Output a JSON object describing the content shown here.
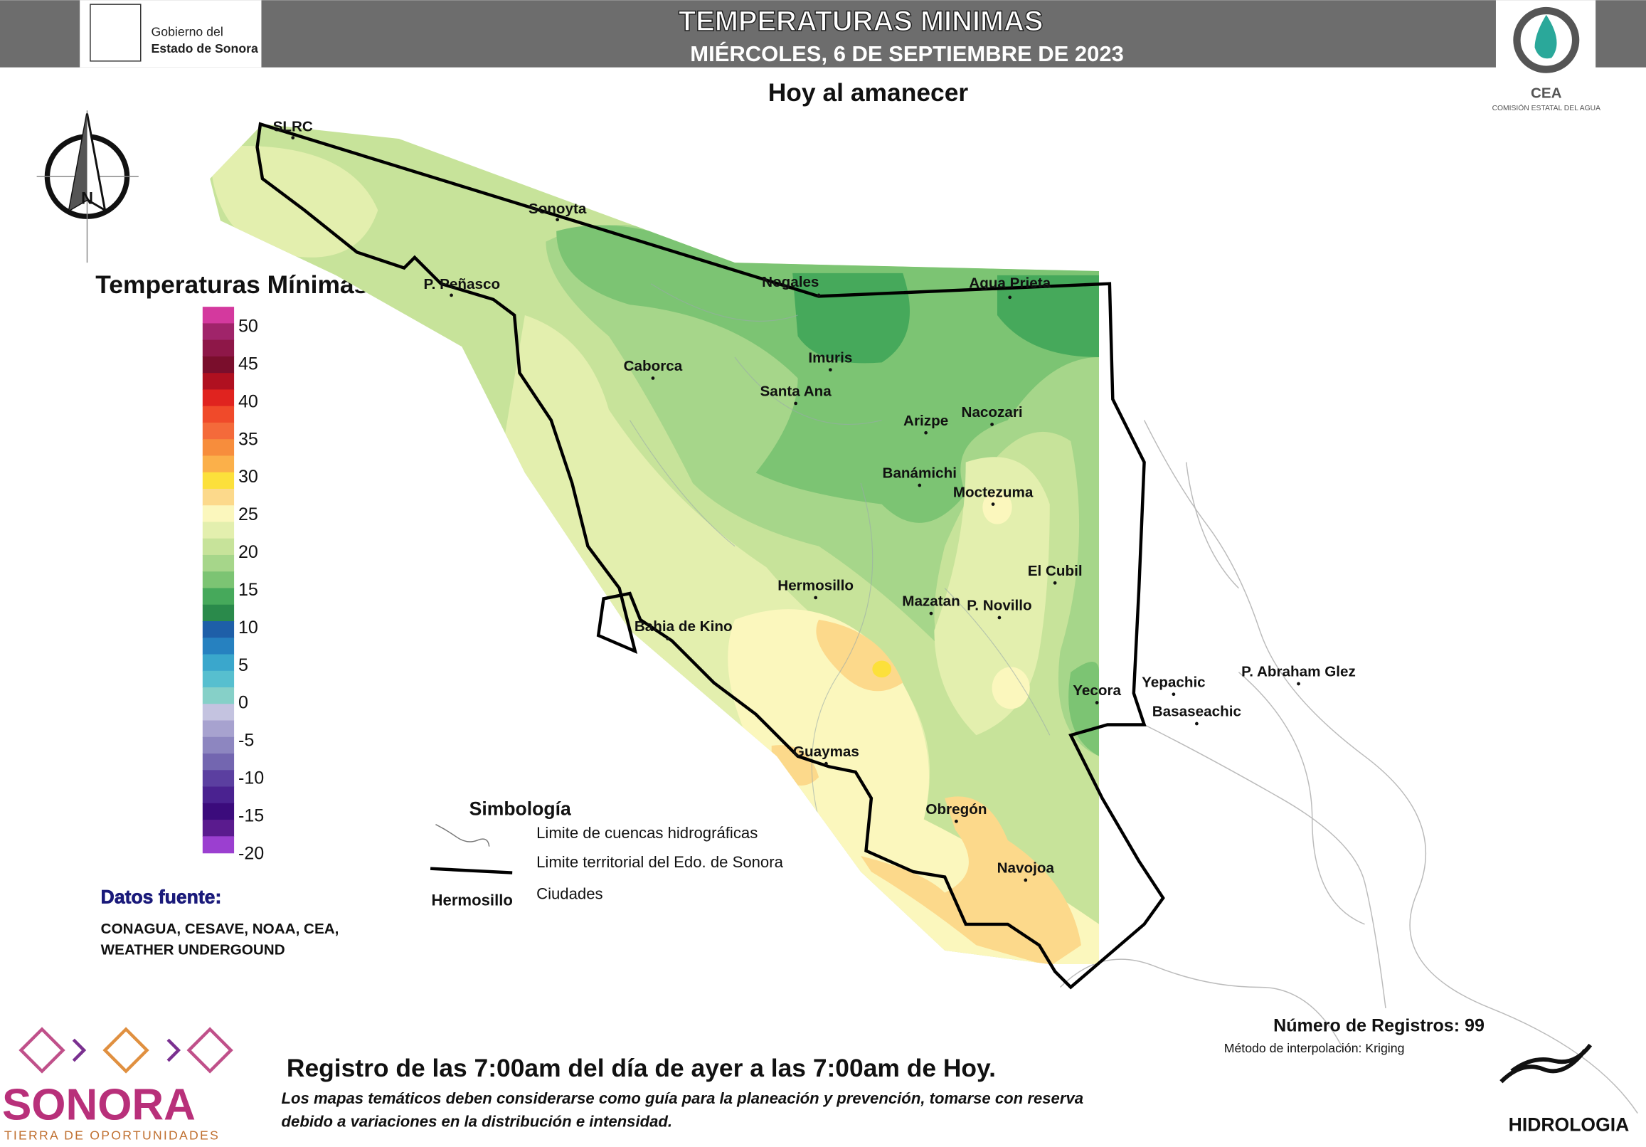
{
  "header": {
    "title": "TEMPERATURAS MINIMAS",
    "date": "MIÉRCOLES, 6 DE SEPTIEMBRE DE 2023",
    "government": [
      "Gobierno del",
      "Estado de Sonora"
    ],
    "agency": "CEA",
    "agency_name": "COMISIÓN ESTATAL DEL AGUA"
  },
  "subtitle": "Hoy al amanecer",
  "compass": "N",
  "legend": {
    "title": "Temperaturas Mínimas",
    "ticks": [
      50,
      45,
      40,
      35,
      30,
      25,
      20,
      15,
      10,
      5,
      0,
      -5,
      -10,
      -15,
      -20
    ],
    "colors": [
      "#d4399e",
      "#a0246a",
      "#8e1748",
      "#7a0e2c",
      "#b01020",
      "#e0231f",
      "#f04a2a",
      "#f46a3a",
      "#f78d3c",
      "#fbb04a",
      "#fce03b",
      "#fcd98b",
      "#fbf7bd",
      "#e3efae",
      "#c7e39a",
      "#a6d68a",
      "#7cc473",
      "#46a95b",
      "#2a8a4b",
      "#1e5fa8",
      "#2681c0",
      "#3aa7cc",
      "#57bfcf",
      "#86d0c8",
      "#c4c3e0",
      "#a7a2cf",
      "#8d86c0",
      "#7366b0",
      "#5b3fa0",
      "#4a2290",
      "#3b0b7c",
      "#5a1b8e",
      "#9b3fd0"
    ]
  },
  "cities": [
    {
      "name": "SLRC"
    },
    {
      "name": "Sonoyta"
    },
    {
      "name": "P. Peñasco"
    },
    {
      "name": "Nogales"
    },
    {
      "name": "Agua Prieta"
    },
    {
      "name": "Caborca"
    },
    {
      "name": "Imuris"
    },
    {
      "name": "Santa Ana"
    },
    {
      "name": "Arizpe"
    },
    {
      "name": "Nacozari"
    },
    {
      "name": "Banámichi"
    },
    {
      "name": "Moctezuma"
    },
    {
      "name": "El Cubil"
    },
    {
      "name": "Hermosillo"
    },
    {
      "name": "Mazatan"
    },
    {
      "name": "P. Novillo"
    },
    {
      "name": "Bahia de Kino"
    },
    {
      "name": "Yecora"
    },
    {
      "name": "Yepachic"
    },
    {
      "name": "P. Abraham Glez"
    },
    {
      "name": "Basaseachic"
    },
    {
      "name": "Guaymas"
    },
    {
      "name": "Obregón"
    },
    {
      "name": "Navojoa"
    }
  ],
  "symbology": {
    "title": "Simbología",
    "basins": "Limite de cuencas hidrográficas",
    "border": "Limite territorial del Edo. de Sonora",
    "city_example": "Hermosillo",
    "cities": "Ciudades"
  },
  "sources": {
    "title": "Datos fuente:",
    "lines": [
      "CONAGUA, CESAVE, NOAA, CEA,",
      "WEATHER UNDERGOUND"
    ]
  },
  "records": "Número de Registros: 99",
  "method": "Método de interpolación: Kriging",
  "footer": {
    "period": "Registro de las 7:00am del día de ayer a las 7:00am de Hoy.",
    "note": [
      "Los mapas temáticos deben considerarse como guía para la planeación y prevención, tomarse con reserva",
      "debido a variaciones en la distribución e intensidad."
    ]
  },
  "brand": {
    "name": "SONORA",
    "tagline": "TIERRA DE OPORTUNIDADES"
  },
  "department": "HIDROLOGIA"
}
